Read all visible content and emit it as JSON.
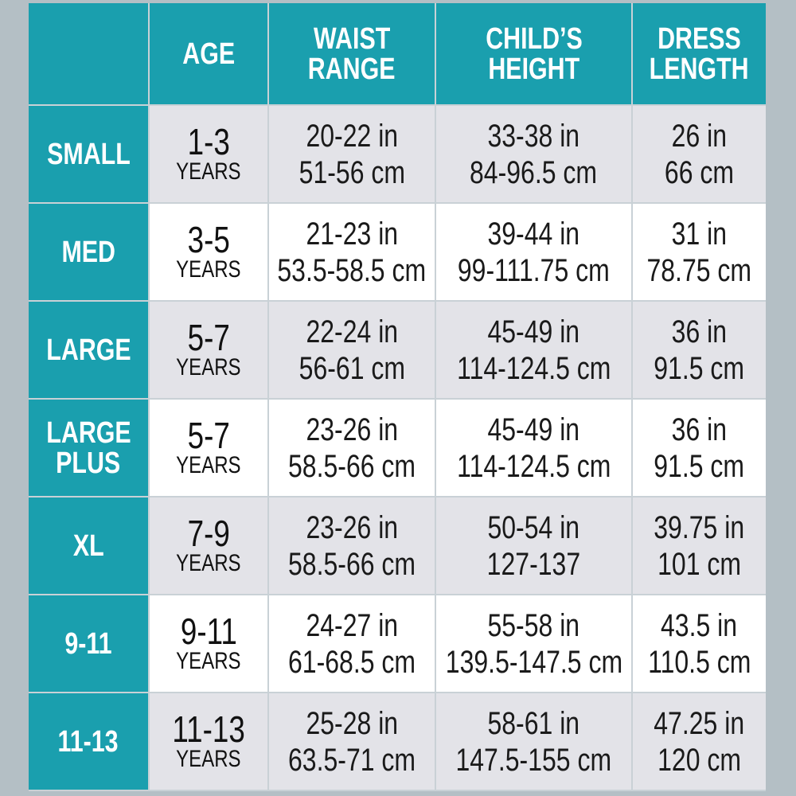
{
  "table": {
    "columns": [
      [
        "AGE"
      ],
      [
        "WAIST",
        "RANGE"
      ],
      [
        "CHILD’S",
        "HEIGHT"
      ],
      [
        "DRESS",
        "LENGTH"
      ]
    ],
    "rows": [
      {
        "size": [
          "SMALL"
        ],
        "age": "1-3",
        "age_unit": "YEARS",
        "waist": [
          "20-22 in",
          "51-56 cm"
        ],
        "height": [
          "33-38 in",
          "84-96.5 cm"
        ],
        "dress": [
          "26 in",
          "66 cm"
        ]
      },
      {
        "size": [
          "MED"
        ],
        "age": "3-5",
        "age_unit": "YEARS",
        "waist": [
          "21-23 in",
          "53.5-58.5 cm"
        ],
        "height": [
          "39-44 in",
          "99-111.75 cm"
        ],
        "dress": [
          "31 in",
          "78.75 cm"
        ]
      },
      {
        "size": [
          "LARGE"
        ],
        "age": "5-7",
        "age_unit": "YEARS",
        "waist": [
          "22-24 in",
          "56-61 cm"
        ],
        "height": [
          "45-49 in",
          "114-124.5 cm"
        ],
        "dress": [
          "36 in",
          "91.5 cm"
        ]
      },
      {
        "size": [
          "LARGE",
          "PLUS"
        ],
        "age": "5-7",
        "age_unit": "YEARS",
        "waist": [
          "23-26 in",
          "58.5-66 cm"
        ],
        "height": [
          "45-49 in",
          "114-124.5 cm"
        ],
        "dress": [
          "36 in",
          "91.5 cm"
        ]
      },
      {
        "size": [
          "XL"
        ],
        "age": "7-9",
        "age_unit": "YEARS",
        "waist": [
          "23-26 in",
          "58.5-66 cm"
        ],
        "height": [
          "50-54 in",
          "127-137"
        ],
        "dress": [
          "39.75 in",
          "101 cm"
        ]
      },
      {
        "size": [
          "9-11"
        ],
        "age": "9-11",
        "age_unit": "YEARS",
        "waist": [
          "24-27 in",
          "61-68.5 cm"
        ],
        "height": [
          "55-58 in",
          "139.5-147.5 cm"
        ],
        "dress": [
          "43.5 in",
          "110.5 cm"
        ]
      },
      {
        "size": [
          "11-13"
        ],
        "age": "11-13",
        "age_unit": "YEARS",
        "waist": [
          "25-28 in",
          "63.5-71 cm"
        ],
        "height": [
          "58-61 in",
          "147.5-155 cm"
        ],
        "dress": [
          "47.25 in",
          "120 cm"
        ]
      }
    ]
  }
}
